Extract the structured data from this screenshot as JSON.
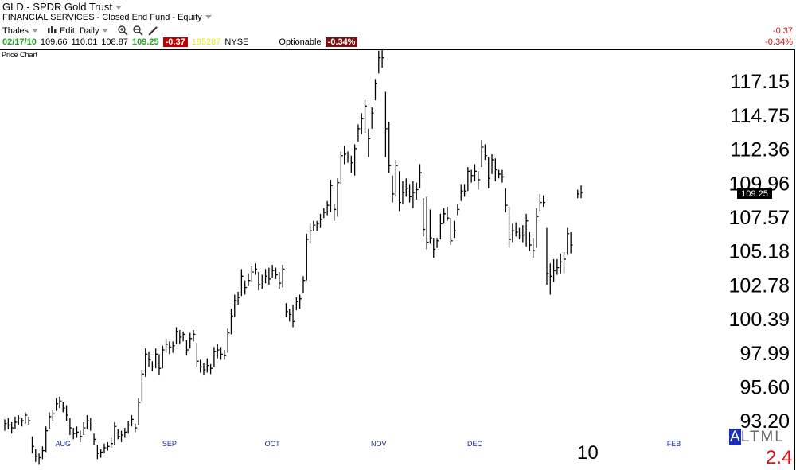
{
  "header": {
    "title": "GLD - SPDR Gold Trust",
    "category": "FINANCIAL SERVICES - Closed End Fund - Equity",
    "toolbar": {
      "source": "Thales",
      "edit": "Edit",
      "period": "Daily",
      "icons": [
        "bar-chart-icon",
        "zoom-in-icon",
        "zoom-out-icon",
        "pencil-icon"
      ]
    },
    "quote": {
      "date": "02/17/10",
      "open": "109.66",
      "high": "110.01",
      "low": "108.87",
      "last": "109.25",
      "change": "-0.37",
      "volume": "195287",
      "exchange": "NYSE",
      "optionable": "Optionable",
      "change_pct": "-0.34%"
    },
    "right_change": "-0.37",
    "right_change_pct": "-0.34%"
  },
  "panel_label": "Price Chart",
  "bottom": {
    "center_value": "10",
    "right_value": "2.4",
    "altml": [
      "A",
      "L",
      "T",
      "M",
      "L"
    ],
    "altml_selected": 0
  },
  "colors": {
    "bars": "#000000",
    "last_price_bg": "#000000",
    "red": "#e01010",
    "green": "#2aa22a"
  },
  "chart_data": {
    "type": "ohlc",
    "title": "",
    "xlabel": "",
    "ylabel": "",
    "ylim": [
      92.2,
      119.4
    ],
    "y_ticks": [
      "117.15",
      "114.75",
      "112.36",
      "109.96",
      "107.57",
      "105.18",
      "102.78",
      "100.39",
      "97.99",
      "95.60",
      "93.20"
    ],
    "x_month_labels": [
      "AUG",
      "SEP",
      "OCT",
      "NOV",
      "DEC",
      "FEB"
    ],
    "last_price_label": "109.25",
    "grid": false,
    "legend": "none",
    "bars": [
      [
        93.3,
        92.5,
        93.0
      ],
      [
        93.4,
        92.6,
        92.9
      ],
      [
        93.1,
        92.3,
        92.7
      ],
      [
        93.5,
        92.6,
        93.1
      ],
      [
        93.6,
        92.9,
        93.4
      ],
      [
        93.4,
        92.8,
        93.2
      ],
      [
        93.8,
        93.0,
        93.6
      ],
      [
        93.5,
        92.9,
        93.2
      ],
      [
        92.1,
        90.9,
        91.4
      ],
      [
        91.2,
        90.3,
        90.7
      ],
      [
        90.9,
        90.1,
        90.6
      ],
      [
        91.4,
        90.5,
        91.1
      ],
      [
        92.8,
        91.0,
        92.5
      ],
      [
        93.8,
        92.6,
        93.5
      ],
      [
        94.0,
        93.2,
        93.7
      ],
      [
        94.8,
        93.9,
        94.4
      ],
      [
        94.9,
        94.1,
        94.6
      ],
      [
        94.5,
        93.8,
        94.1
      ],
      [
        94.3,
        93.2,
        93.6
      ],
      [
        93.4,
        92.2,
        92.7
      ],
      [
        92.7,
        91.9,
        92.3
      ],
      [
        92.8,
        92.0,
        92.4
      ],
      [
        92.5,
        91.7,
        92.1
      ],
      [
        93.1,
        92.2,
        92.7
      ],
      [
        93.6,
        92.6,
        93.2
      ],
      [
        93.4,
        92.5,
        92.9
      ],
      [
        92.3,
        91.5,
        91.9
      ],
      [
        91.5,
        90.5,
        90.9
      ],
      [
        91.2,
        90.6,
        91.0
      ],
      [
        91.6,
        90.9,
        91.3
      ],
      [
        91.7,
        91.1,
        91.4
      ],
      [
        92.0,
        91.3,
        91.6
      ],
      [
        93.1,
        91.5,
        92.8
      ],
      [
        92.6,
        91.9,
        92.1
      ],
      [
        92.5,
        91.7,
        92.2
      ],
      [
        92.7,
        92.0,
        92.4
      ],
      [
        93.2,
        92.3,
        92.9
      ],
      [
        93.6,
        92.8,
        93.3
      ],
      [
        93.0,
        92.4,
        92.7
      ],
      [
        94.8,
        92.9,
        94.5
      ],
      [
        96.8,
        94.6,
        96.5
      ],
      [
        98.3,
        96.3,
        97.9
      ],
      [
        98.1,
        97.0,
        97.5
      ],
      [
        97.4,
        96.7,
        97.0
      ],
      [
        98.3,
        96.9,
        97.9
      ],
      [
        97.9,
        96.4,
        96.9
      ],
      [
        98.5,
        96.9,
        98.2
      ],
      [
        99.0,
        98.0,
        98.6
      ],
      [
        98.8,
        97.9,
        98.4
      ],
      [
        98.8,
        98.0,
        98.5
      ],
      [
        99.8,
        98.6,
        99.5
      ],
      [
        99.6,
        98.6,
        99.1
      ],
      [
        99.5,
        98.8,
        99.3
      ],
      [
        98.9,
        97.8,
        98.2
      ],
      [
        99.4,
        98.3,
        99.0
      ],
      [
        99.6,
        98.8,
        99.3
      ],
      [
        98.7,
        97.0,
        97.4
      ],
      [
        97.5,
        96.6,
        97.0
      ],
      [
        97.3,
        96.4,
        96.8
      ],
      [
        97.6,
        96.6,
        97.1
      ],
      [
        97.2,
        96.5,
        96.9
      ],
      [
        98.4,
        97.0,
        98.1
      ],
      [
        98.6,
        97.6,
        98.2
      ],
      [
        98.4,
        97.5,
        97.9
      ],
      [
        98.2,
        97.5,
        97.8
      ],
      [
        99.7,
        98.0,
        99.4
      ],
      [
        101.1,
        99.3,
        100.6
      ],
      [
        102.1,
        100.5,
        101.7
      ],
      [
        102.3,
        101.4,
        101.9
      ],
      [
        103.9,
        102.0,
        103.4
      ],
      [
        103.1,
        102.1,
        102.6
      ],
      [
        103.6,
        102.7,
        103.1
      ],
      [
        104.1,
        103.0,
        103.7
      ],
      [
        104.3,
        103.5,
        103.9
      ],
      [
        103.7,
        102.4,
        102.8
      ],
      [
        103.5,
        102.5,
        103.0
      ],
      [
        103.9,
        102.9,
        103.4
      ],
      [
        104.0,
        102.8,
        103.2
      ],
      [
        104.2,
        103.3,
        103.8
      ],
      [
        104.0,
        103.2,
        103.5
      ],
      [
        103.7,
        102.5,
        102.9
      ],
      [
        104.2,
        102.6,
        103.9
      ],
      [
        101.5,
        100.5,
        100.9
      ],
      [
        101.1,
        100.2,
        100.7
      ],
      [
        101.4,
        99.8,
        100.2
      ],
      [
        101.9,
        101.0,
        101.6
      ],
      [
        102.1,
        101.1,
        101.8
      ],
      [
        103.4,
        102.2,
        103.1
      ],
      [
        106.4,
        103.1,
        106.0
      ],
      [
        107.1,
        105.7,
        106.6
      ],
      [
        107.3,
        106.6,
        107.0
      ],
      [
        107.3,
        106.6,
        107.1
      ],
      [
        107.8,
        106.8,
        107.4
      ],
      [
        108.2,
        107.5,
        107.9
      ],
      [
        108.7,
        107.7,
        108.4
      ],
      [
        110.2,
        107.9,
        109.8
      ],
      [
        108.5,
        107.3,
        108.1
      ],
      [
        110.3,
        107.6,
        110.0
      ],
      [
        112.2,
        109.9,
        111.9
      ],
      [
        112.6,
        111.3,
        112.0
      ],
      [
        112.2,
        111.4,
        111.8
      ],
      [
        111.9,
        110.7,
        111.4
      ],
      [
        112.7,
        110.5,
        112.4
      ],
      [
        114.1,
        112.9,
        113.8
      ],
      [
        114.9,
        113.4,
        114.5
      ],
      [
        115.8,
        113.5,
        115.4
      ],
      [
        113.8,
        111.8,
        113.1
      ],
      [
        115.3,
        113.8,
        114.9
      ],
      [
        117.3,
        115.8,
        117.0
      ],
      [
        119.3,
        117.7,
        118.8
      ],
      [
        119.6,
        118.1,
        118.8
      ],
      [
        116.4,
        111.8,
        113.8
      ],
      [
        114.3,
        110.7,
        111.2
      ],
      [
        110.5,
        108.6,
        109.2
      ],
      [
        111.6,
        109.0,
        111.2
      ],
      [
        110.8,
        108.0,
        108.6
      ],
      [
        110.1,
        108.5,
        109.3
      ],
      [
        110.3,
        109.0,
        109.6
      ],
      [
        109.9,
        108.6,
        109.0
      ],
      [
        110.1,
        108.2,
        109.3
      ],
      [
        110.0,
        108.8,
        109.5
      ],
      [
        111.3,
        109.6,
        110.7
      ],
      [
        108.9,
        106.2,
        106.7
      ],
      [
        109.0,
        105.3,
        105.8
      ],
      [
        108.1,
        105.7,
        106.1
      ],
      [
        106.1,
        104.7,
        105.3
      ],
      [
        106.1,
        105.4,
        105.9
      ],
      [
        107.8,
        106.0,
        107.1
      ],
      [
        108.2,
        107.1,
        107.8
      ],
      [
        108.3,
        107.3,
        107.5
      ],
      [
        107.5,
        105.6,
        105.9
      ],
      [
        107.3,
        106.1,
        106.6
      ],
      [
        108.5,
        107.7,
        108.1
      ],
      [
        109.9,
        108.7,
        109.4
      ],
      [
        109.9,
        109.0,
        109.4
      ],
      [
        111.1,
        109.4,
        110.8
      ],
      [
        110.9,
        110.0,
        110.5
      ],
      [
        111.3,
        110.1,
        110.8
      ],
      [
        110.8,
        109.5,
        110.2
      ],
      [
        113.0,
        111.1,
        112.5
      ],
      [
        112.7,
        111.6,
        111.9
      ],
      [
        111.8,
        109.6,
        110.3
      ],
      [
        112.0,
        110.6,
        111.6
      ],
      [
        111.7,
        110.1,
        110.9
      ],
      [
        110.9,
        110.3,
        110.6
      ],
      [
        110.9,
        110.0,
        110.4
      ],
      [
        109.6,
        107.9,
        108.4
      ],
      [
        108.3,
        105.4,
        106.0
      ],
      [
        107.1,
        105.8,
        106.6
      ],
      [
        107.2,
        106.2,
        106.5
      ],
      [
        106.8,
        106.0,
        106.3
      ],
      [
        107.0,
        105.8,
        106.3
      ],
      [
        107.8,
        105.5,
        107.3
      ],
      [
        106.5,
        105.2,
        105.6
      ],
      [
        106.1,
        104.7,
        105.2
      ],
      [
        108.2,
        105.4,
        107.6
      ],
      [
        109.2,
        108.0,
        108.6
      ],
      [
        109.1,
        108.3,
        108.6
      ],
      [
        106.8,
        102.8,
        103.6
      ],
      [
        104.3,
        102.1,
        103.4
      ],
      [
        104.6,
        103.0,
        103.8
      ],
      [
        104.6,
        103.5,
        104.0
      ],
      [
        105.0,
        103.6,
        104.4
      ],
      [
        105.1,
        103.6,
        104.6
      ],
      [
        106.8,
        104.9,
        106.4
      ],
      [
        106.5,
        105.0,
        105.6
      ],
      null,
      [
        109.5,
        108.9,
        109.2
      ],
      [
        109.8,
        108.9,
        109.3
      ]
    ]
  }
}
